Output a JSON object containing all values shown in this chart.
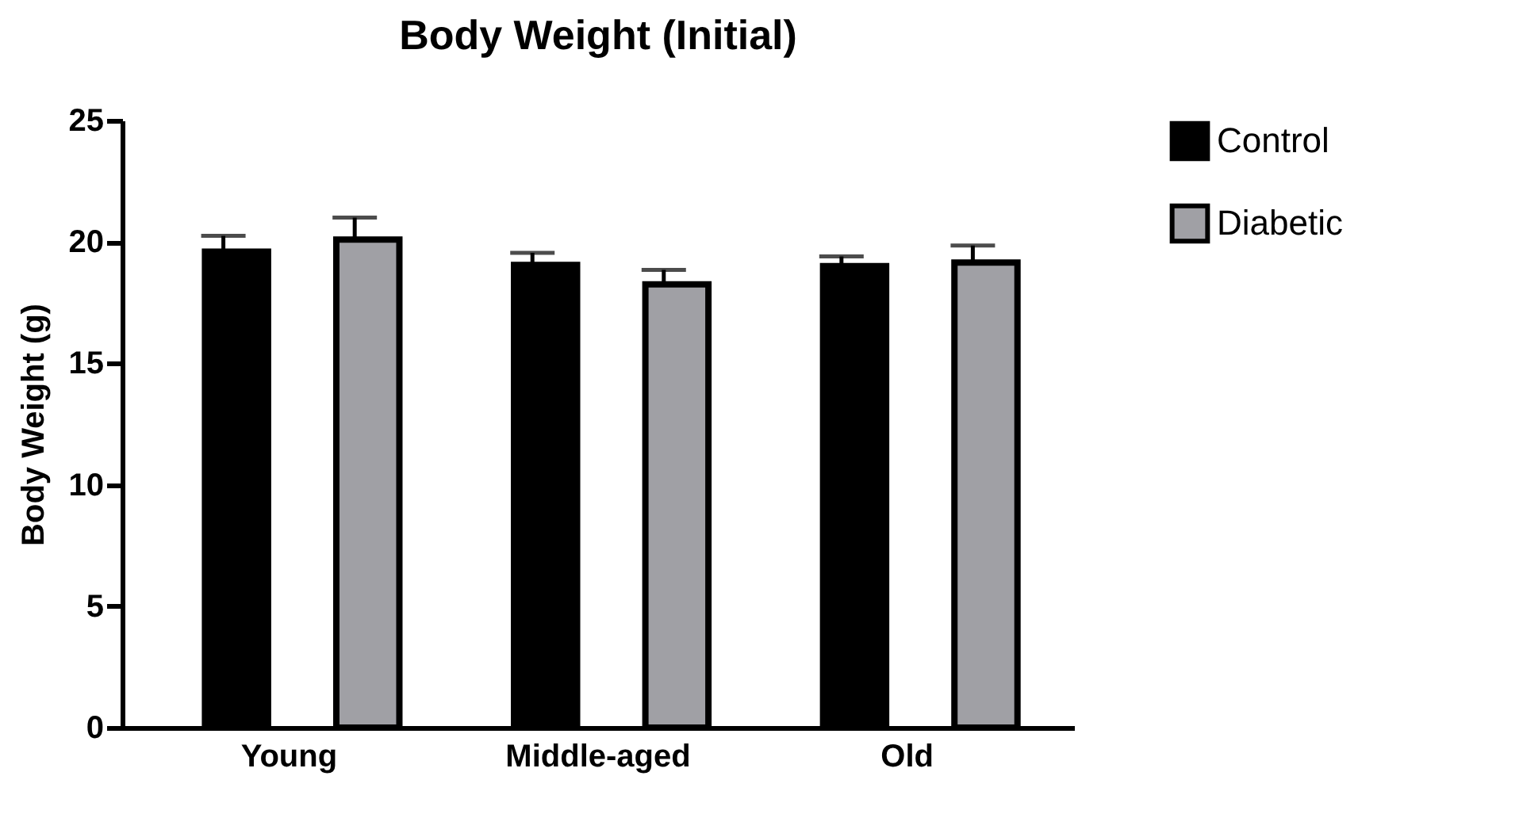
{
  "chart_data": {
    "type": "bar",
    "title": "Body Weight (Initial)",
    "ylabel": "Body Weight (g)",
    "categories": [
      "Young",
      "Middle-aged",
      "Old"
    ],
    "series": [
      {
        "name": "Control",
        "color": "#000000",
        "values": [
          19.6,
          19.05,
          19.0
        ],
        "errors": [
          0.65,
          0.5,
          0.4
        ]
      },
      {
        "name": "Diabetic",
        "color": "#a0a0a5",
        "values": [
          20.1,
          18.25,
          19.15
        ],
        "errors": [
          0.9,
          0.6,
          0.7
        ]
      }
    ],
    "ylim": [
      0,
      25
    ],
    "yticks": [
      0,
      5,
      10,
      15,
      20,
      25
    ],
    "grid": false,
    "legend": "right"
  }
}
